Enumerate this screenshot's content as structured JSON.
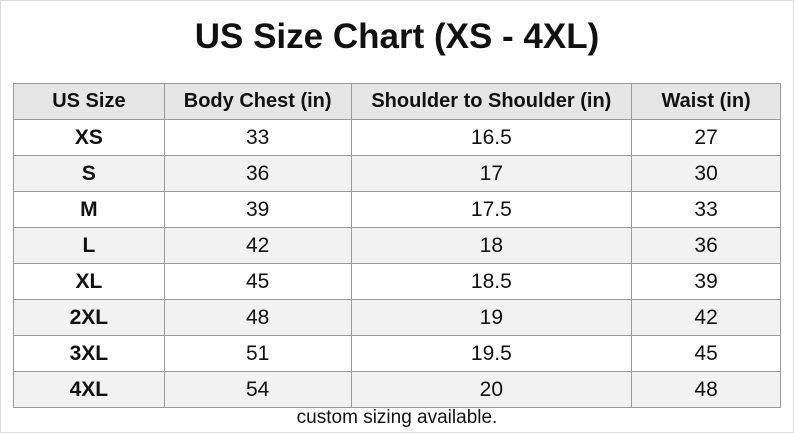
{
  "title": "US Size Chart (XS - 4XL)",
  "table": {
    "header": [
      "US Size",
      "Body Chest (in)",
      "Shoulder to Shoulder (in)",
      "Waist (in)"
    ],
    "rows": [
      [
        "XS",
        "33",
        "16.5",
        "27"
      ],
      [
        "S",
        "36",
        "17",
        "30"
      ],
      [
        "M",
        "39",
        "17.5",
        "33"
      ],
      [
        "L",
        "42",
        "18",
        "36"
      ],
      [
        "XL",
        "45",
        "18.5",
        "39"
      ],
      [
        "2XL",
        "48",
        "19",
        "42"
      ],
      [
        "3XL",
        "51",
        "19.5",
        "45"
      ],
      [
        "4XL",
        "54",
        "20",
        "48"
      ]
    ]
  },
  "footer": "custom sizing available."
}
